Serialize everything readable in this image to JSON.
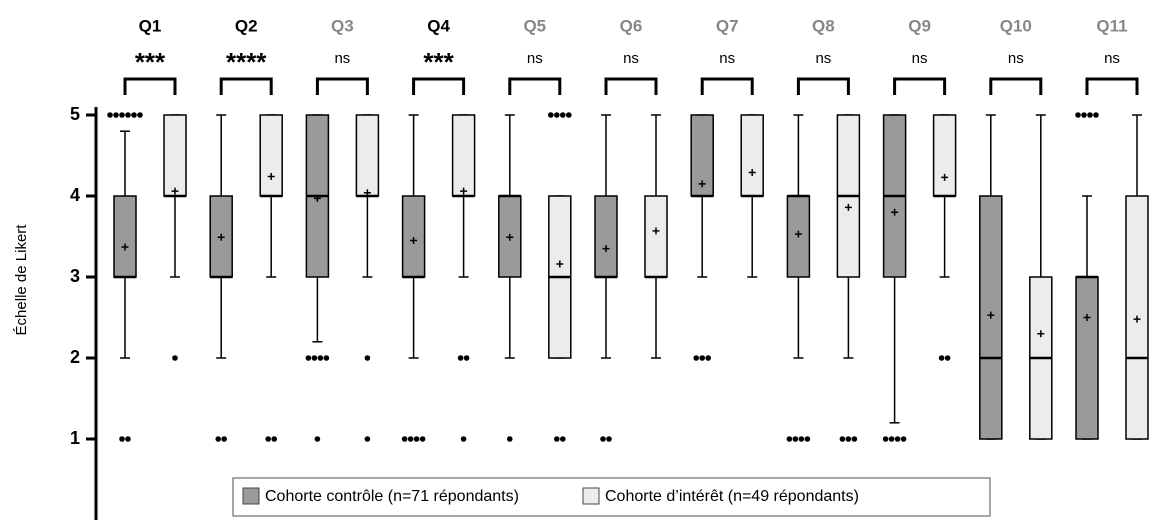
{
  "chart_data": {
    "type": "box",
    "y_label": "Échelle de Likert",
    "categories": [
      "Q1",
      "Q2",
      "Q3",
      "Q4",
      "Q5",
      "Q6",
      "Q7",
      "Q8",
      "Q9",
      "Q10",
      "Q11"
    ],
    "category_colors": [
      "#000000",
      "#000000",
      "#888888",
      "#000000",
      "#888888",
      "#888888",
      "#888888",
      "#888888",
      "#888888",
      "#888888",
      "#888888"
    ],
    "significance": [
      "***",
      "****",
      "ns",
      "***",
      "ns",
      "ns",
      "ns",
      "ns",
      "ns",
      "ns",
      "ns"
    ],
    "ylim": [
      0,
      5
    ],
    "yticks": [
      1,
      2,
      3,
      4,
      5
    ],
    "series": [
      {
        "name": "Cohorte contrôle (n=71 répondants)",
        "color": "#9a9a9a",
        "whislo": [
          2,
          2,
          2.2,
          2,
          2,
          2,
          3,
          2,
          1.2,
          1,
          1
        ],
        "q1": [
          3,
          3,
          3,
          3,
          3,
          3,
          4,
          3,
          3,
          1,
          1
        ],
        "med": [
          3,
          3,
          4,
          3,
          4,
          3,
          4,
          4,
          4,
          2,
          3
        ],
        "q3": [
          4,
          4,
          5,
          4,
          4,
          4,
          5,
          4,
          5,
          4,
          3
        ],
        "whishi": [
          4.8,
          5,
          5,
          5,
          5,
          5,
          5,
          5,
          5,
          5,
          4
        ],
        "mean": [
          3.37,
          3.49,
          3.97,
          3.45,
          3.49,
          3.35,
          4.15,
          3.53,
          3.8,
          2.53,
          2.5
        ],
        "outliers": [
          [
            1,
            1,
            5,
            5,
            5,
            5,
            5,
            5
          ],
          [
            1,
            1
          ],
          [
            2,
            2,
            2,
            2,
            1
          ],
          [
            1,
            1,
            1,
            1
          ],
          [
            1
          ],
          [
            1,
            1
          ],
          [
            2,
            2,
            2
          ],
          [
            1,
            1,
            1,
            1
          ],
          [
            1,
            1,
            1,
            1
          ],
          [],
          [
            5,
            5,
            5,
            5
          ]
        ]
      },
      {
        "name": "Cohorte d’intérêt (n=49 répondants)",
        "color": "#ececec",
        "whislo": [
          3,
          3,
          3,
          3,
          2,
          2,
          3,
          2,
          3,
          1,
          1
        ],
        "q1": [
          4,
          4,
          4,
          4,
          2,
          3,
          4,
          3,
          4,
          1,
          1
        ],
        "med": [
          4,
          4,
          4,
          4,
          3,
          3,
          4,
          4,
          4,
          2,
          2
        ],
        "q3": [
          5,
          5,
          5,
          5,
          4,
          4,
          5,
          5,
          5,
          3,
          4
        ],
        "whishi": [
          5,
          5,
          5,
          5,
          4,
          5,
          5,
          5,
          5,
          5,
          5
        ],
        "mean": [
          4.06,
          4.24,
          4.04,
          4.06,
          3.16,
          3.57,
          4.29,
          3.86,
          4.23,
          2.3,
          2.48
        ],
        "outliers": [
          [
            2
          ],
          [
            1,
            1
          ],
          [
            2,
            1
          ],
          [
            2,
            2,
            1
          ],
          [
            5,
            5,
            5,
            5,
            1,
            1
          ],
          [],
          [],
          [
            1,
            1,
            1
          ],
          [
            2,
            2
          ],
          [],
          []
        ]
      }
    ]
  }
}
